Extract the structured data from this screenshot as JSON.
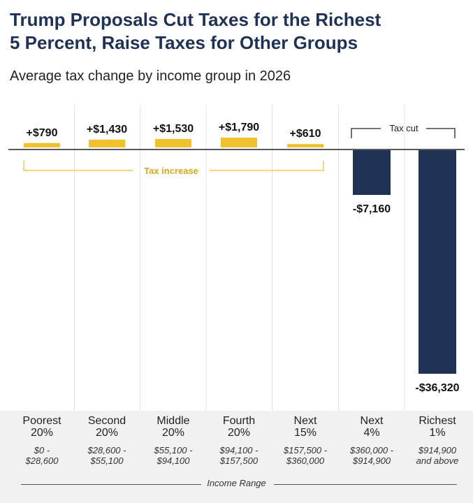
{
  "title_line1": "Trump Proposals Cut Taxes for the Richest",
  "title_line2": "5 Percent, Raise Taxes for Other Groups",
  "subtitle": "Average tax change by income group in 2026",
  "colors": {
    "increase": "#f0c12c",
    "cut": "#1f3256",
    "title": "#1f3256"
  },
  "chart_data": {
    "type": "bar",
    "title": "Trump Proposals Cut Taxes for the Richest 5 Percent, Raise Taxes for Other Groups",
    "subtitle": "Average tax change by income group in 2026",
    "categories": [
      "Poorest 20%",
      "Second 20%",
      "Middle 20%",
      "Fourth 20%",
      "Next 15%",
      "Next 4%",
      "Richest 1%"
    ],
    "values": [
      790,
      1430,
      1530,
      1790,
      610,
      -7160,
      -36320
    ],
    "value_labels": [
      "+$790",
      "+$1,430",
      "+$1,530",
      "+$1,790",
      "+$610",
      "-$7,160",
      "-$36,320"
    ],
    "group_labels": {
      "increase": "Tax increase",
      "cut": "Tax cut"
    },
    "xlabel": "Income Range",
    "ylabel": "",
    "grid": false
  },
  "groups": [
    {
      "name": "Poorest",
      "pct": "20%",
      "range1": "$0 -",
      "range2": "$28,600"
    },
    {
      "name": "Second",
      "pct": "20%",
      "range1": "$28,600 -",
      "range2": "$55,100"
    },
    {
      "name": "Middle",
      "pct": "20%",
      "range1": "$55,100 -",
      "range2": "$94,100"
    },
    {
      "name": "Fourth",
      "pct": "20%",
      "range1": "$94,100 -",
      "range2": "$157,500"
    },
    {
      "name": "Next",
      "pct": "15%",
      "range1": "$157,500 -",
      "range2": "$360,000"
    },
    {
      "name": "Next",
      "pct": "4%",
      "range1": "$360,000 -",
      "range2": "$914,900"
    },
    {
      "name": "Richest",
      "pct": "1%",
      "range1": "$914,900",
      "range2": "and above"
    }
  ],
  "footer_label": "Income Range"
}
